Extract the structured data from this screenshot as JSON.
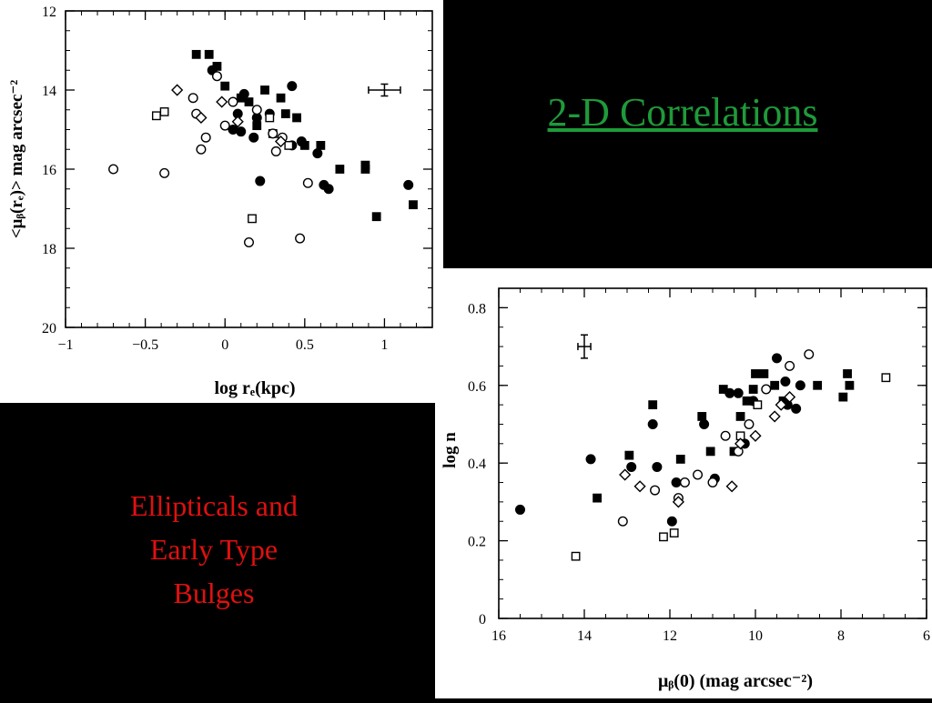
{
  "slide": {
    "title": "2-D Correlations",
    "caption_lines": [
      "Ellipticals and",
      "Early Type",
      "Bulges"
    ],
    "title_color": "#1f9a3a",
    "caption_color": "#e01010",
    "background": "#000000"
  },
  "chart_data": [
    {
      "type": "scatter",
      "xlabel": "log rₑ(kpc)",
      "ylabel": "<μᵦ(rₑ)> mag arcsec⁻²",
      "xlim": [
        -1,
        1.3
      ],
      "ylim": [
        20,
        12
      ],
      "y_inverted": true,
      "xticks": [
        -1,
        -0.5,
        0,
        0.5,
        1
      ],
      "xtick_labels": [
        "−1",
        "−0.5",
        "0",
        "0.5",
        "1"
      ],
      "yticks": [
        12,
        14,
        16,
        18,
        20
      ],
      "ytick_labels": [
        "12",
        "14",
        "16",
        "18",
        "20"
      ],
      "grid": false,
      "error_bar": {
        "x": 1.0,
        "y": 14.0,
        "xerr": 0.1,
        "yerr": 0.15
      },
      "series": [
        {
          "marker": "filled-square",
          "points": [
            [
              -0.18,
              13.1
            ],
            [
              -0.1,
              13.1
            ],
            [
              -0.05,
              13.4
            ],
            [
              0.0,
              13.9
            ],
            [
              0.1,
              14.2
            ],
            [
              0.15,
              14.3
            ],
            [
              0.25,
              14.0
            ],
            [
              0.35,
              14.2
            ],
            [
              0.38,
              14.6
            ],
            [
              0.45,
              14.7
            ],
            [
              0.5,
              15.4
            ],
            [
              0.6,
              15.4
            ],
            [
              0.72,
              16.0
            ],
            [
              0.88,
              16.0
            ],
            [
              0.88,
              15.9
            ],
            [
              0.95,
              17.2
            ],
            [
              1.18,
              16.9
            ],
            [
              0.3,
              15.1
            ],
            [
              0.2,
              14.9
            ]
          ]
        },
        {
          "marker": "filled-circle",
          "points": [
            [
              -0.08,
              13.5
            ],
            [
              0.12,
              14.1
            ],
            [
              0.2,
              14.7
            ],
            [
              0.28,
              14.6
            ],
            [
              0.42,
              13.9
            ],
            [
              0.05,
              15.0
            ],
            [
              0.1,
              15.05
            ],
            [
              0.18,
              15.2
            ],
            [
              0.42,
              15.4
            ],
            [
              0.48,
              15.3
            ],
            [
              0.58,
              15.6
            ],
            [
              0.62,
              16.4
            ],
            [
              0.65,
              16.5
            ],
            [
              1.15,
              16.4
            ],
            [
              0.22,
              16.3
            ],
            [
              0.08,
              14.6
            ]
          ]
        },
        {
          "marker": "open-circle",
          "points": [
            [
              -0.7,
              16.0
            ],
            [
              -0.38,
              16.1
            ],
            [
              -0.2,
              14.2
            ],
            [
              -0.18,
              14.6
            ],
            [
              -0.12,
              15.2
            ],
            [
              -0.15,
              15.5
            ],
            [
              0.0,
              14.9
            ],
            [
              0.2,
              14.5
            ],
            [
              0.3,
              15.1
            ],
            [
              0.36,
              15.2
            ],
            [
              0.32,
              15.55
            ],
            [
              0.52,
              16.35
            ],
            [
              0.47,
              17.75
            ],
            [
              0.15,
              17.85
            ],
            [
              -0.05,
              13.65
            ],
            [
              0.05,
              14.3
            ]
          ]
        },
        {
          "marker": "open-square",
          "points": [
            [
              -0.43,
              14.65
            ],
            [
              -0.38,
              14.55
            ],
            [
              0.17,
              17.25
            ],
            [
              0.28,
              14.7
            ],
            [
              0.4,
              15.4
            ]
          ]
        },
        {
          "marker": "open-diamond",
          "points": [
            [
              -0.3,
              14.0
            ],
            [
              -0.15,
              14.7
            ],
            [
              -0.02,
              14.3
            ],
            [
              0.08,
              14.8
            ],
            [
              0.35,
              15.3
            ]
          ]
        }
      ]
    },
    {
      "type": "scatter",
      "xlabel": "μᵦ(0) (mag arcsec⁻²)",
      "ylabel": "log n",
      "xlim": [
        16,
        6
      ],
      "x_inverted": true,
      "ylim": [
        0,
        0.85
      ],
      "xticks": [
        16,
        14,
        12,
        10,
        8,
        6
      ],
      "xtick_labels": [
        "16",
        "14",
        "12",
        "10",
        "8",
        "6"
      ],
      "yticks": [
        0,
        0.2,
        0.4,
        0.6,
        0.8
      ],
      "ytick_labels": [
        "0",
        "0.2",
        "0.4",
        "0.6",
        "0.8"
      ],
      "grid": false,
      "error_bar": {
        "x": 14.0,
        "y": 0.7,
        "xerr": 0.15,
        "yerr": 0.03
      },
      "series": [
        {
          "marker": "filled-square",
          "points": [
            [
              13.7,
              0.31
            ],
            [
              12.95,
              0.42
            ],
            [
              12.4,
              0.55
            ],
            [
              11.75,
              0.41
            ],
            [
              11.25,
              0.52
            ],
            [
              11.05,
              0.43
            ],
            [
              10.75,
              0.59
            ],
            [
              10.5,
              0.43
            ],
            [
              10.35,
              0.52
            ],
            [
              10.2,
              0.56
            ],
            [
              10.05,
              0.59
            ],
            [
              10.0,
              0.63
            ],
            [
              9.8,
              0.63
            ],
            [
              9.55,
              0.6
            ],
            [
              9.35,
              0.56
            ],
            [
              8.55,
              0.6
            ],
            [
              7.95,
              0.57
            ],
            [
              7.85,
              0.63
            ],
            [
              7.8,
              0.6
            ]
          ]
        },
        {
          "marker": "filled-circle",
          "points": [
            [
              15.5,
              0.28
            ],
            [
              13.85,
              0.41
            ],
            [
              12.9,
              0.39
            ],
            [
              12.4,
              0.5
            ],
            [
              12.3,
              0.39
            ],
            [
              11.95,
              0.25
            ],
            [
              11.85,
              0.35
            ],
            [
              11.2,
              0.5
            ],
            [
              10.95,
              0.36
            ],
            [
              10.6,
              0.58
            ],
            [
              10.4,
              0.58
            ],
            [
              10.25,
              0.45
            ],
            [
              10.05,
              0.56
            ],
            [
              9.5,
              0.67
            ],
            [
              9.3,
              0.61
            ],
            [
              9.25,
              0.55
            ],
            [
              9.05,
              0.54
            ],
            [
              8.95,
              0.6
            ]
          ]
        },
        {
          "marker": "open-circle",
          "points": [
            [
              13.1,
              0.25
            ],
            [
              12.35,
              0.33
            ],
            [
              11.8,
              0.31
            ],
            [
              11.65,
              0.35
            ],
            [
              11.35,
              0.37
            ],
            [
              11.0,
              0.35
            ],
            [
              10.7,
              0.47
            ],
            [
              10.4,
              0.43
            ],
            [
              10.15,
              0.5
            ],
            [
              9.75,
              0.59
            ],
            [
              9.2,
              0.65
            ],
            [
              8.75,
              0.68
            ]
          ]
        },
        {
          "marker": "open-square",
          "points": [
            [
              14.2,
              0.16
            ],
            [
              12.15,
              0.21
            ],
            [
              11.9,
              0.22
            ],
            [
              10.35,
              0.47
            ],
            [
              9.95,
              0.55
            ],
            [
              6.95,
              0.62
            ]
          ]
        },
        {
          "marker": "open-diamond",
          "points": [
            [
              13.05,
              0.37
            ],
            [
              12.7,
              0.34
            ],
            [
              11.8,
              0.3
            ],
            [
              10.55,
              0.34
            ],
            [
              10.35,
              0.45
            ],
            [
              10.0,
              0.47
            ],
            [
              9.55,
              0.52
            ],
            [
              9.4,
              0.55
            ],
            [
              9.2,
              0.57
            ]
          ]
        }
      ]
    }
  ]
}
